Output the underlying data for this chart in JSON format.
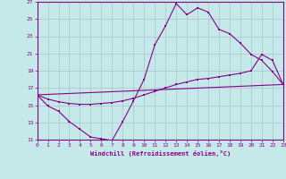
{
  "xlabel": "Windchill (Refroidissement éolien,°C)",
  "xlim": [
    0,
    23
  ],
  "ylim": [
    11,
    27
  ],
  "yticks": [
    11,
    13,
    15,
    17,
    19,
    21,
    23,
    25,
    27
  ],
  "xticks": [
    0,
    1,
    2,
    3,
    4,
    5,
    6,
    7,
    8,
    9,
    10,
    11,
    12,
    13,
    14,
    15,
    16,
    17,
    18,
    19,
    20,
    21,
    22,
    23
  ],
  "background_color": "#c5e8e8",
  "grid_color": "#aac4cc",
  "line_color": "#880088",
  "line1_x": [
    0,
    1,
    2,
    3,
    4,
    5,
    6,
    7,
    8,
    9,
    10,
    11,
    12,
    13,
    14,
    15,
    16,
    17,
    18,
    19,
    20,
    21,
    22,
    23
  ],
  "line1_y": [
    16.2,
    14.9,
    14.3,
    13.1,
    12.2,
    11.3,
    11.1,
    10.9,
    13.1,
    15.5,
    18.0,
    22.0,
    24.2,
    26.8,
    25.5,
    26.3,
    25.8,
    23.8,
    23.3,
    22.2,
    20.9,
    20.2,
    18.9,
    17.4
  ],
  "line2_x": [
    0,
    1,
    2,
    3,
    4,
    5,
    6,
    7,
    8,
    9,
    10,
    11,
    12,
    13,
    14,
    15,
    16,
    17,
    18,
    19,
    20,
    21,
    22,
    23
  ],
  "line2_y": [
    16.2,
    15.7,
    15.4,
    15.2,
    15.1,
    15.1,
    15.2,
    15.3,
    15.5,
    15.8,
    16.2,
    16.6,
    17.0,
    17.4,
    17.7,
    18.0,
    18.1,
    18.3,
    18.5,
    18.7,
    19.0,
    20.9,
    20.2,
    17.4
  ],
  "line3_x": [
    0,
    23
  ],
  "line3_y": [
    16.2,
    17.4
  ]
}
